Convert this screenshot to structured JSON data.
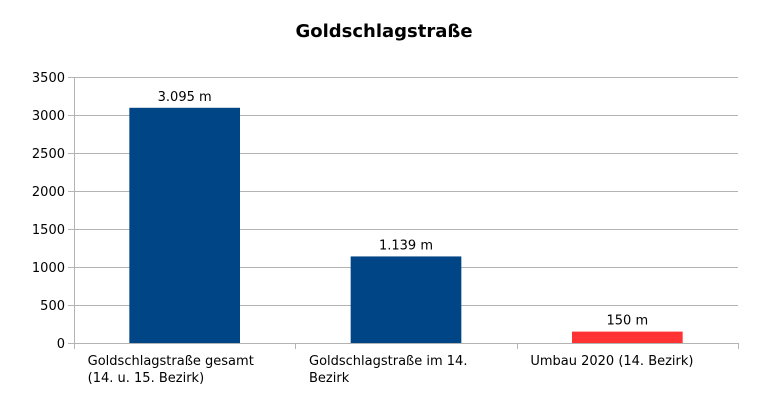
{
  "chart_data": {
    "type": "bar",
    "title": "Goldschlagstraße",
    "xlabel": "",
    "ylabel": "",
    "ylim": [
      0,
      3500
    ],
    "yticks": [
      0,
      500,
      1000,
      1500,
      2000,
      2500,
      3000,
      3500
    ],
    "grid": true,
    "legend": "none",
    "categories": [
      [
        "Goldschlagstraße gesamt",
        "(14. u. 15. Bezirk)"
      ],
      [
        "Goldschlagstraße im 14.",
        "Bezirk"
      ],
      [
        "Umbau 2020 (14. Bezirk)"
      ]
    ],
    "values": [
      3095,
      1139,
      150
    ],
    "data_labels": [
      "3.095 m",
      "1.139 m",
      "150 m"
    ],
    "colors": [
      "#004586",
      "#004586",
      "#ff3333"
    ]
  }
}
